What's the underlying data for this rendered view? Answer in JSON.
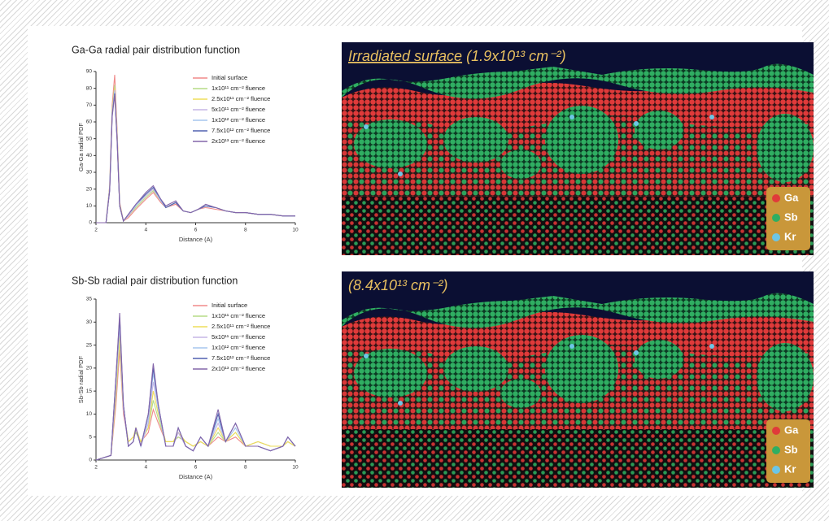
{
  "chart_data": [
    {
      "type": "line",
      "title": "Ga-Ga radial pair distribution function",
      "x_label": "Distance (A)",
      "y_label": "Ga-Ga radial PDF",
      "x": [
        2,
        2.4,
        2.55,
        2.65,
        2.75,
        2.85,
        2.95,
        3.1,
        3.3,
        3.6,
        4.0,
        4.3,
        4.6,
        4.8,
        5.2,
        5.5,
        5.8,
        6.1,
        6.4,
        6.8,
        7.2,
        7.6,
        8.0,
        8.5,
        9.0,
        9.5,
        10
      ],
      "xlim": [
        2,
        10
      ],
      "xticks": [
        2,
        4,
        6,
        8,
        10
      ],
      "ylim": [
        0,
        90
      ],
      "yticks": [
        0,
        10,
        20,
        30,
        40,
        50,
        60,
        70,
        80,
        90
      ],
      "legend": "upper right",
      "series": [
        {
          "name": "Initial surface",
          "color": "#f08a8a",
          "values": [
            0,
            0,
            22,
            70,
            88,
            55,
            12,
            1,
            3,
            8,
            14,
            18,
            12,
            9,
            11,
            7,
            6,
            8,
            9,
            8,
            7,
            6,
            6,
            5,
            5,
            4,
            4
          ]
        },
        {
          "name": "1x10¹¹ cm⁻² fluence",
          "color": "#b5dc86",
          "values": [
            0,
            0,
            21,
            67,
            82,
            52,
            11,
            1,
            4,
            9,
            15,
            19,
            13,
            9,
            12,
            7,
            6,
            8,
            10,
            9,
            7,
            6,
            6,
            5,
            5,
            4,
            4
          ]
        },
        {
          "name": "2.5x10¹¹ cm⁻² fluence",
          "color": "#eedd5a",
          "values": [
            0,
            0,
            20,
            66,
            80,
            51,
            10,
            1,
            4,
            10,
            16,
            20,
            13,
            9,
            12,
            7,
            6,
            8,
            10,
            9,
            7,
            6,
            6,
            5,
            5,
            4,
            4
          ]
        },
        {
          "name": "5x10¹¹ cm⁻² fluence",
          "color": "#c6b6e6",
          "values": [
            0,
            0,
            20,
            65,
            79,
            50,
            10,
            1,
            4,
            10,
            16,
            20,
            13,
            9,
            12,
            7,
            6,
            8,
            10,
            9,
            7,
            6,
            6,
            5,
            5,
            4,
            4
          ]
        },
        {
          "name": "1x10¹² cm⁻² fluence",
          "color": "#a6c6ee",
          "values": [
            0,
            0,
            20,
            65,
            78,
            50,
            10,
            1,
            5,
            10,
            17,
            21,
            13,
            9,
            12,
            7,
            6,
            8,
            10,
            9,
            7,
            6,
            6,
            5,
            5,
            4,
            4
          ]
        },
        {
          "name": "7.5x10¹² cm⁻² fluence",
          "color": "#5060b0",
          "values": [
            0,
            0,
            19,
            64,
            77,
            49,
            10,
            1,
            5,
            11,
            17,
            21,
            14,
            9,
            12,
            7,
            6,
            8,
            10,
            9,
            7,
            6,
            6,
            5,
            5,
            4,
            4
          ]
        },
        {
          "name": "2x10¹³ cm⁻² fluence",
          "color": "#8466aa",
          "values": [
            0,
            0,
            19,
            63,
            76,
            48,
            10,
            1,
            5,
            11,
            18,
            22,
            14,
            10,
            13,
            7,
            6,
            8,
            11,
            9,
            7,
            6,
            6,
            5,
            5,
            4,
            4
          ]
        }
      ]
    },
    {
      "type": "line",
      "title": "Sb-Sb radial pair distribution function",
      "x_label": "Distance (A)",
      "y_label": "Sb-Sb radial PDF",
      "x": [
        2,
        2.6,
        2.8,
        2.95,
        3.1,
        3.3,
        3.5,
        3.6,
        3.8,
        4.1,
        4.3,
        4.5,
        4.8,
        5.1,
        5.3,
        5.6,
        5.9,
        6.2,
        6.5,
        6.9,
        7.2,
        7.6,
        8.0,
        8.5,
        9.0,
        9.5,
        9.7,
        10
      ],
      "xlim": [
        2,
        10
      ],
      "xticks": [
        2,
        4,
        6,
        8,
        10
      ],
      "ylim": [
        0,
        35
      ],
      "yticks": [
        0,
        5,
        10,
        15,
        20,
        25,
        30,
        35
      ],
      "legend": "upper right",
      "series": [
        {
          "name": "Initial surface",
          "color": "#f08a8a",
          "values": [
            0,
            1,
            12,
            24,
            10,
            4,
            5,
            6,
            4,
            6,
            11,
            8,
            4,
            4,
            5,
            4,
            3,
            4,
            3,
            5,
            4,
            5,
            3,
            4,
            3,
            3,
            4,
            3
          ]
        },
        {
          "name": "1x10¹¹ cm⁻² fluence",
          "color": "#b5dc86",
          "values": [
            0,
            1,
            14,
            26,
            11,
            4,
            5,
            6,
            4,
            7,
            13,
            9,
            4,
            4,
            5,
            4,
            3,
            4,
            3,
            6,
            4,
            6,
            3,
            4,
            3,
            3,
            4,
            3
          ]
        },
        {
          "name": "2.5x10¹¹ cm⁻² fluence",
          "color": "#eedd5a",
          "values": [
            0,
            1,
            15,
            27,
            11,
            4,
            5,
            7,
            4,
            7,
            15,
            10,
            4,
            4,
            6,
            4,
            3,
            4,
            3,
            7,
            4,
            6,
            3,
            4,
            3,
            3,
            4,
            3
          ]
        },
        {
          "name": "5x10¹¹ cm⁻² fluence",
          "color": "#c6b6e6",
          "values": [
            0,
            1,
            16,
            29,
            11,
            3,
            4,
            7,
            3,
            8,
            17,
            11,
            3,
            3,
            6,
            3,
            2,
            5,
            3,
            8,
            4,
            7,
            3,
            3,
            2,
            3,
            5,
            3
          ]
        },
        {
          "name": "1x10¹² cm⁻² fluence",
          "color": "#a6c6ee",
          "values": [
            0,
            1,
            17,
            30,
            12,
            3,
            4,
            7,
            3,
            9,
            19,
            11,
            3,
            3,
            7,
            3,
            2,
            5,
            3,
            9,
            4,
            7,
            3,
            3,
            2,
            3,
            5,
            3
          ]
        },
        {
          "name": "7.5x10¹² cm⁻² fluence",
          "color": "#5060b0",
          "values": [
            0,
            1,
            18,
            31,
            12,
            3,
            4,
            7,
            3,
            10,
            20,
            12,
            3,
            3,
            7,
            3,
            2,
            5,
            3,
            10,
            4,
            8,
            3,
            3,
            2,
            3,
            5,
            3
          ]
        },
        {
          "name": "2x10¹³ cm⁻² fluence",
          "color": "#8466aa",
          "values": [
            0,
            1,
            18,
            32,
            12,
            3,
            4,
            7,
            3,
            10,
            21,
            12,
            3,
            3,
            7,
            3,
            2,
            5,
            3,
            11,
            4,
            8,
            3,
            3,
            2,
            3,
            5,
            3
          ]
        }
      ]
    }
  ],
  "panels": [
    {
      "title_underlined": "Irradiated surface",
      "fluence": "(1.9x10¹³ cm⁻²)",
      "legend": [
        "Ga",
        "Sb",
        "Kr"
      ]
    },
    {
      "fluence": "(8.4x10¹³ cm⁻²)",
      "legend": [
        "Ga",
        "Sb",
        "Kr"
      ]
    }
  ]
}
